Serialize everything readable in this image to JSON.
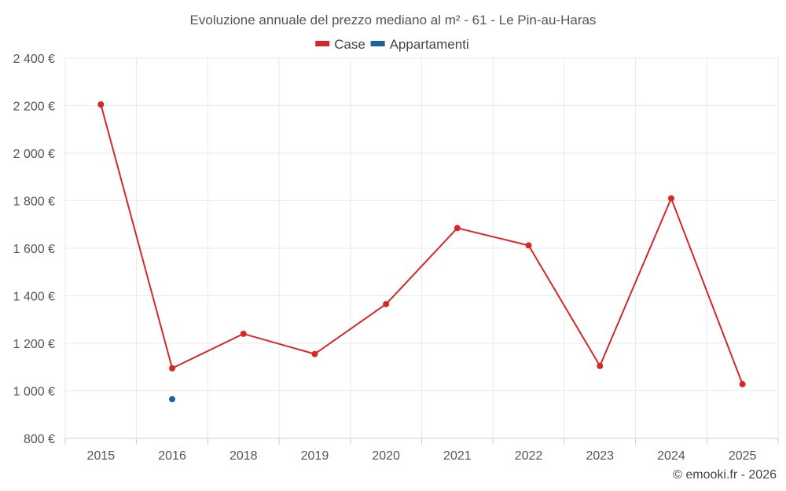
{
  "chart_data": {
    "type": "line",
    "title": "Evoluzione annuale del prezzo mediano al m² - 61 - Le Pin-au-Haras",
    "categories": [
      "2015",
      "2016",
      "2018",
      "2019",
      "2020",
      "2021",
      "2022",
      "2023",
      "2024",
      "2025"
    ],
    "series": [
      {
        "name": "Case",
        "color": "#d62728",
        "values": [
          2205,
          1095,
          1240,
          1155,
          1365,
          1685,
          1612,
          1105,
          1810,
          1028
        ]
      },
      {
        "name": "Appartamenti",
        "color": "#1f5fa0",
        "values": [
          null,
          965,
          null,
          null,
          null,
          null,
          null,
          null,
          null,
          null
        ]
      }
    ],
    "ylim": [
      800,
      2400
    ],
    "yticks": [
      800,
      1000,
      1200,
      1400,
      1600,
      1800,
      2000,
      2200,
      2400
    ],
    "ytick_labels": [
      "800 €",
      "1 000 €",
      "1 200 €",
      "1 400 €",
      "1 600 €",
      "1 800 €",
      "2 000 €",
      "2 200 €",
      "2 400 €"
    ],
    "xlabel": "",
    "ylabel": "",
    "grid": true,
    "legend_position": "top-center"
  },
  "credit": "© emooki.fr - 2026"
}
